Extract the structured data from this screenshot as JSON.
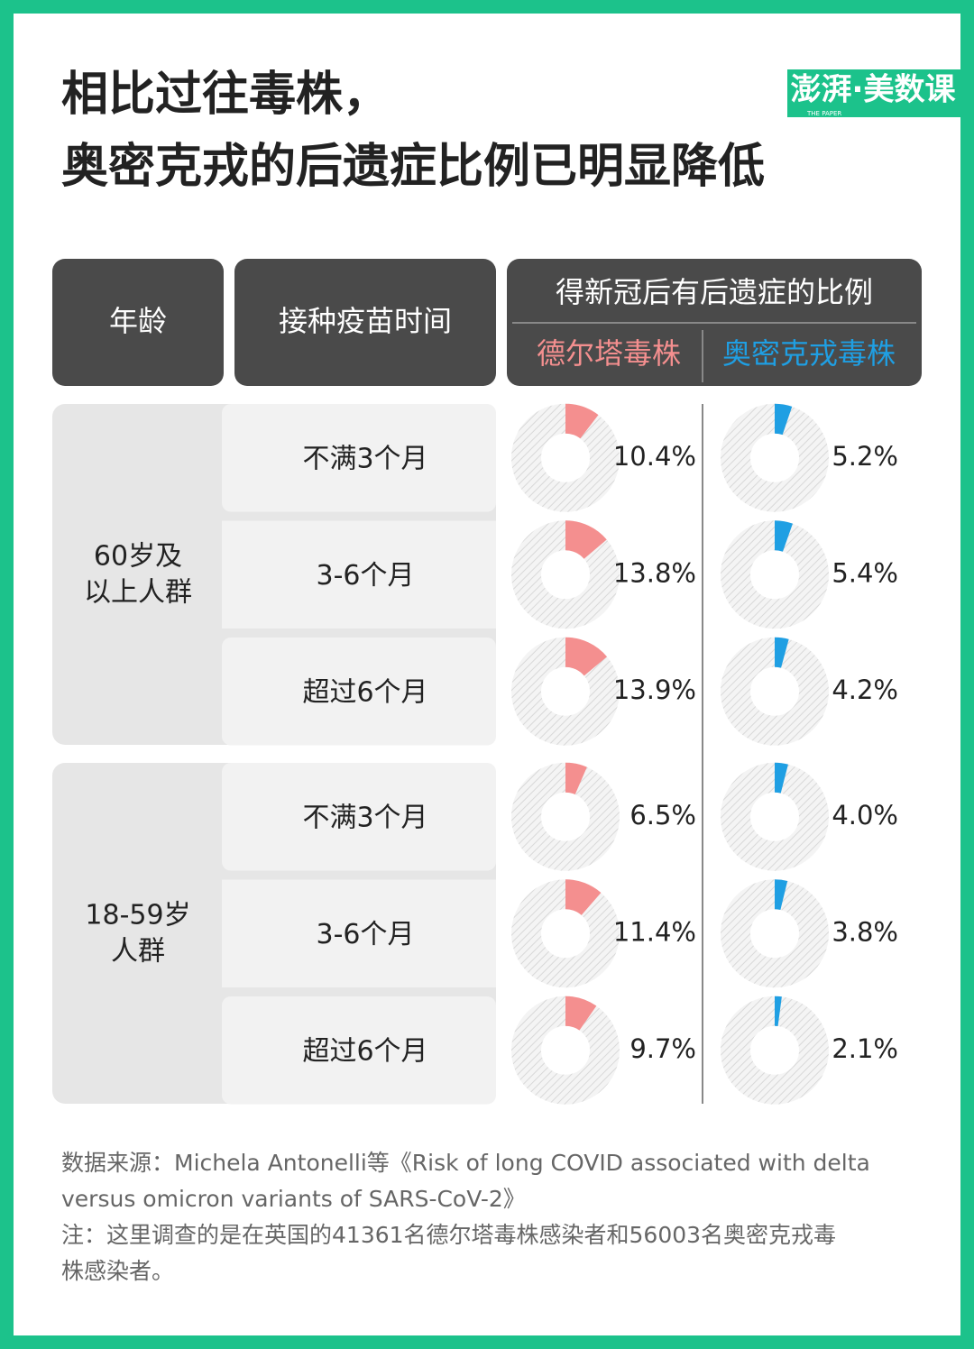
{
  "title": [
    "相比过往毒株，",
    "奥密克戎的后遗症比例已明显降低"
  ],
  "logo": {
    "name": "澎湃·美数课",
    "sub": "THE PAPER"
  },
  "table": {
    "headers": {
      "age": "年龄",
      "vaccine": "接种疫苗时间",
      "ratio": "得新冠后有后遗症的比例"
    },
    "series": [
      {
        "name": "德尔塔毒株",
        "color": "#f48f8f"
      },
      {
        "name": "奥密克戎毒株",
        "color": "#1f9fe3"
      }
    ],
    "groups": [
      {
        "label": [
          "60岁及",
          "以上人群"
        ],
        "rows": [
          {
            "label": "不满3个月",
            "values": [
              10.4,
              5.2
            ],
            "value_labels": [
              "10.4%",
              "5.2%"
            ]
          },
          {
            "label": "3-6个月",
            "values": [
              13.8,
              5.4
            ],
            "value_labels": [
              "13.8%",
              "5.4%"
            ]
          },
          {
            "label": "超过6个月",
            "values": [
              13.9,
              4.2
            ],
            "value_labels": [
              "13.9%",
              "4.2%"
            ]
          }
        ]
      },
      {
        "label": [
          "18-59岁",
          "人群"
        ],
        "rows": [
          {
            "label": "不满3个月",
            "values": [
              6.5,
              4.0
            ],
            "value_labels": [
              "6.5%",
              "4.0%"
            ]
          },
          {
            "label": "3-6个月",
            "values": [
              11.4,
              3.8
            ],
            "value_labels": [
              "11.4%",
              "3.8%"
            ]
          },
          {
            "label": "超过6个月",
            "values": [
              9.7,
              2.1
            ],
            "value_labels": [
              "9.7%",
              "2.1%"
            ]
          }
        ]
      }
    ]
  },
  "notes": [
    "数据来源：Michela Antonelli等《Risk of long COVID associated with delta",
    "versus omicron variants of SARS-CoV-2》",
    "注：这里调查的是在英国的41361名德尔塔毒株感染者和56003名奥密克戎毒",
    "株感染者。"
  ]
}
